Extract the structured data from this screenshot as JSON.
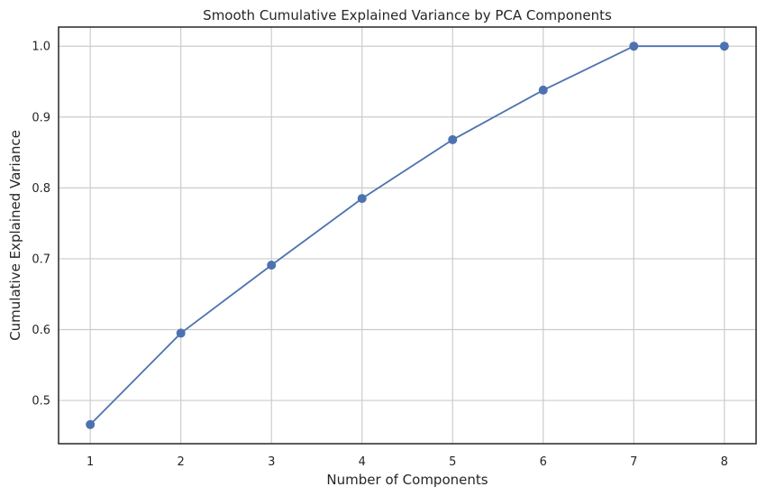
{
  "chart_data": {
    "type": "line",
    "title": "Smooth Cumulative Explained Variance by PCA Components",
    "xlabel": "Number of Components",
    "ylabel": "Cumulative Explained Variance",
    "x": [
      1,
      2,
      3,
      4,
      5,
      6,
      7,
      8
    ],
    "series": [
      {
        "values": [
          0.466,
          0.595,
          0.691,
          0.785,
          0.868,
          0.938,
          1.0,
          1.0
        ],
        "color": "#4c72b0",
        "marker": "circle"
      }
    ],
    "xticks": [
      "1",
      "2",
      "3",
      "4",
      "5",
      "6",
      "7",
      "8"
    ],
    "yticks": [
      "0.5",
      "0.6",
      "0.7",
      "0.8",
      "0.9",
      "1.0"
    ],
    "ytick_values": [
      0.5,
      0.6,
      0.7,
      0.8,
      0.9,
      1.0
    ],
    "xlim": [
      0.65,
      8.35
    ],
    "ylim": [
      0.439,
      1.027
    ],
    "grid": true,
    "grid_color": "#cccccc",
    "frame_color": "#262626"
  }
}
